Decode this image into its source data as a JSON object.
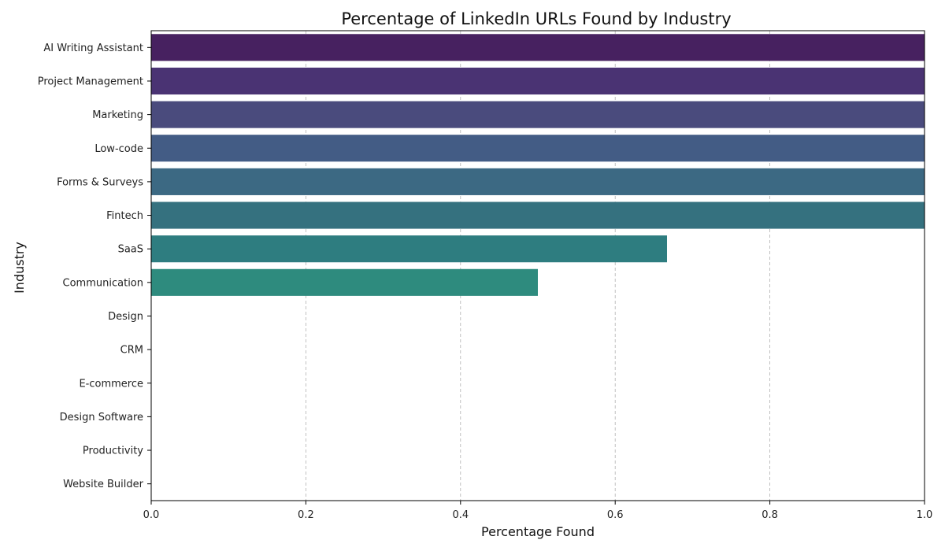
{
  "chart_data": {
    "type": "bar",
    "orientation": "horizontal",
    "title": "Percentage of LinkedIn URLs Found by Industry",
    "xlabel": "Percentage Found",
    "ylabel": "Industry",
    "xlim": [
      0,
      1.0
    ],
    "xticks": [
      "0.0",
      "0.2",
      "0.4",
      "0.6",
      "0.8",
      "1.0"
    ],
    "grid": "x-dashed",
    "categories": [
      "AI Writing Assistant",
      "Project Management",
      "Marketing",
      "Low-code",
      "Forms & Surveys",
      "Fintech",
      "SaaS",
      "Communication",
      "Design",
      "CRM",
      "E-commerce",
      "Design Software",
      "Productivity",
      "Website Builder"
    ],
    "values": [
      1.0,
      1.0,
      1.0,
      1.0,
      1.0,
      1.0,
      0.667,
      0.5,
      0,
      0,
      0,
      0,
      0,
      0
    ],
    "colors": [
      "#472160",
      "#4a3373",
      "#4a4b7d",
      "#435c85",
      "#3c6983",
      "#35717f",
      "#2e7d80",
      "#2e8b7e",
      "#2f9a7b",
      "#3aa879",
      "#55b56f",
      "#76c060",
      "#9acb4f",
      "#c2d53d"
    ]
  }
}
